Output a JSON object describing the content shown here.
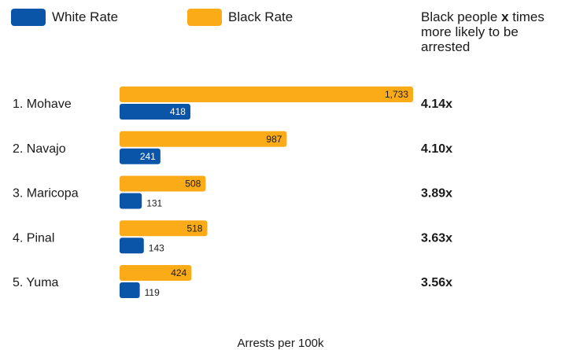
{
  "legend": {
    "white_label": "White Rate",
    "black_label": "Black Rate"
  },
  "ratio_note": {
    "prefix": "Black people ",
    "emphasis": "x",
    "suffix": " times more likely to be arrested"
  },
  "colors": {
    "white": "#0a55a8",
    "black": "#fbab18"
  },
  "chart_data": {
    "type": "bar",
    "orientation": "horizontal",
    "xlabel": "Arrests per 100k",
    "categories": [
      "1. Mohave",
      "2. Navajo",
      "3. Maricopa",
      "4. Pinal",
      "5. Yuma"
    ],
    "series": [
      {
        "name": "Black Rate",
        "values": [
          1733,
          987,
          508,
          518,
          424
        ],
        "labels": [
          "1,733",
          "987",
          "508",
          "518",
          "424"
        ]
      },
      {
        "name": "White Rate",
        "values": [
          418,
          241,
          131,
          143,
          119
        ],
        "labels": [
          "418",
          "241",
          "131",
          "143",
          "119"
        ]
      }
    ],
    "ratios": [
      "4.14x",
      "4.10x",
      "3.89x",
      "3.63x",
      "3.56x"
    ],
    "xlim": [
      0,
      1733
    ],
    "legend_position": "top-left",
    "grid": false
  }
}
